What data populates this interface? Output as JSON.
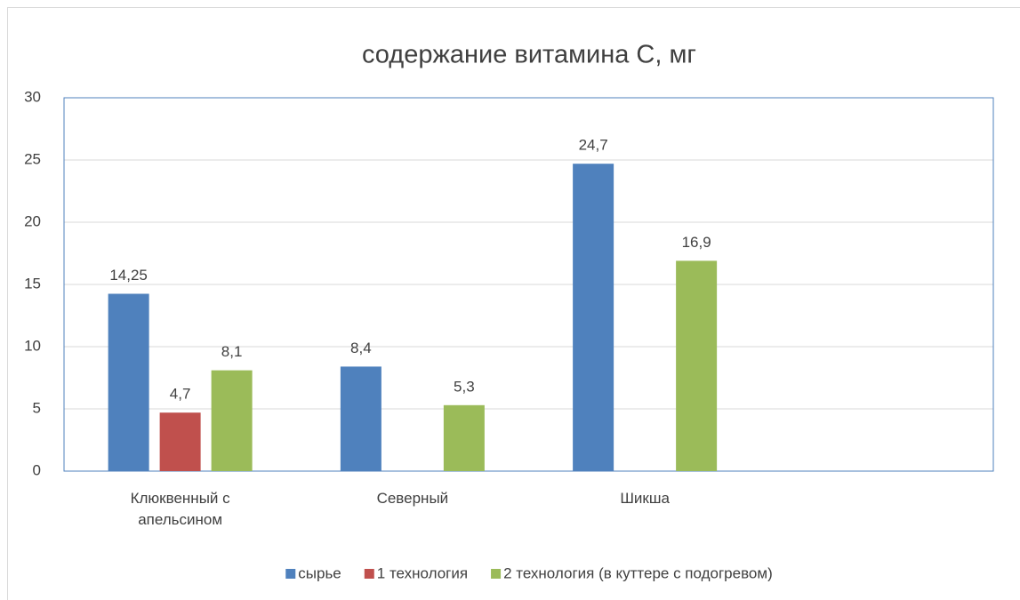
{
  "chart_data": {
    "type": "bar",
    "title": "содержание витамина С, мг",
    "categories": [
      "Клюквенный с апельсином",
      "Северный",
      "Шикша",
      null
    ],
    "series": [
      {
        "name": "сырье",
        "color": "#4f81bd",
        "values": [
          14.25,
          8.4,
          24.7,
          null
        ],
        "value_labels": [
          "14,25",
          "8,4",
          "24,7",
          null
        ]
      },
      {
        "name": "1 технология",
        "color": "#c0504d",
        "values": [
          4.7,
          null,
          null,
          null
        ],
        "value_labels": [
          "4,7",
          null,
          null,
          null
        ]
      },
      {
        "name": "2 технология (в куттере с подогревом)",
        "color": "#9bbb59",
        "values": [
          8.1,
          5.3,
          16.9,
          null
        ],
        "value_labels": [
          "8,1",
          "5,3",
          "16,9",
          null
        ]
      }
    ],
    "ylim": [
      0,
      30
    ],
    "yticks": [
      0,
      5,
      10,
      15,
      20,
      25,
      30
    ],
    "grid": true,
    "legend": "bottom"
  }
}
